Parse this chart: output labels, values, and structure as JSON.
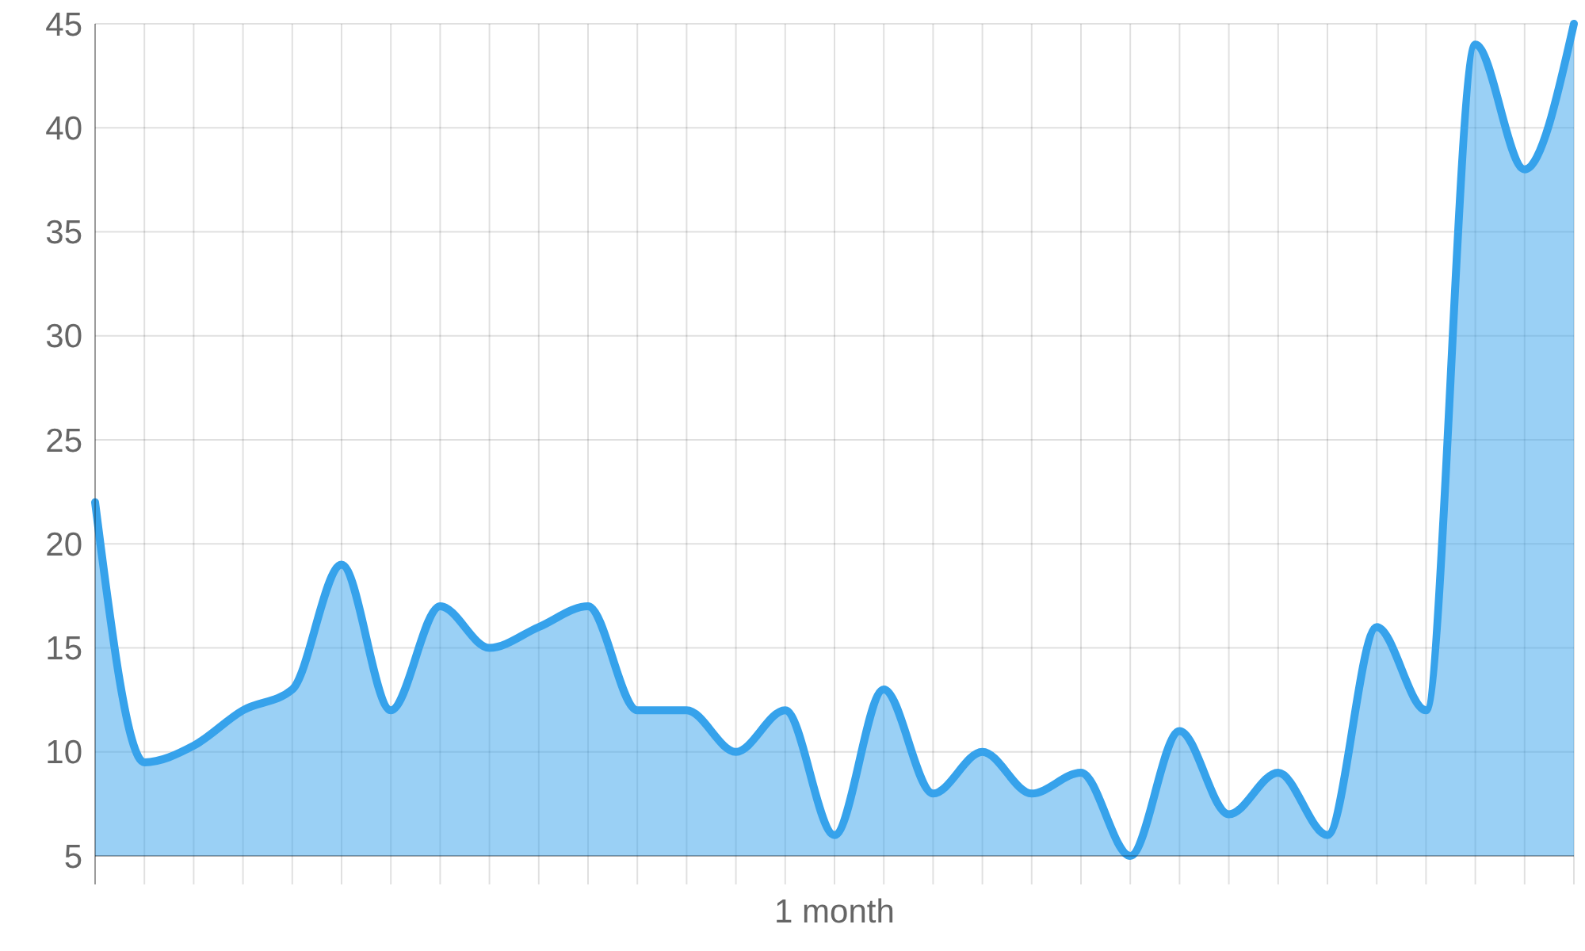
{
  "chart_data": {
    "type": "area",
    "xlabel": "1 month",
    "categories": [
      null,
      null,
      null,
      null,
      null,
      null,
      null,
      null,
      null,
      null,
      null,
      null,
      null,
      null,
      null,
      null,
      null,
      null,
      null,
      null,
      null,
      null,
      null,
      null,
      null,
      null,
      null,
      null,
      null,
      null,
      null
    ],
    "series": [
      {
        "color": "#36a2eb",
        "values": [
          22,
          9.5,
          10.3,
          12,
          13,
          19,
          12,
          17,
          15,
          16,
          17,
          12,
          12,
          10,
          12,
          6,
          13,
          8,
          10,
          8,
          9,
          5,
          11,
          7,
          9,
          6,
          16,
          12,
          44,
          38,
          45
        ]
      }
    ],
    "ylim": [
      5,
      45
    ],
    "yticks": [
      5,
      10,
      15,
      20,
      25,
      30,
      35,
      40,
      45
    ],
    "grid": true
  }
}
